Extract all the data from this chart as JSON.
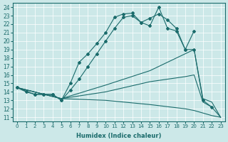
{
  "xlabel": "Humidex (Indice chaleur)",
  "ylabel": "",
  "bg_color": "#cce8e8",
  "line_color": "#1a6b6b",
  "xlim": [
    -0.5,
    23.5
  ],
  "ylim": [
    10.5,
    24.5
  ],
  "yticks": [
    11,
    12,
    13,
    14,
    15,
    16,
    17,
    18,
    19,
    20,
    21,
    22,
    23,
    24
  ],
  "xticks": [
    0,
    1,
    2,
    3,
    4,
    5,
    6,
    7,
    8,
    9,
    10,
    11,
    12,
    13,
    14,
    15,
    16,
    17,
    18,
    19,
    20,
    21,
    22,
    23
  ],
  "lines": [
    {
      "x": [
        0,
        1,
        2,
        3,
        4,
        5,
        6,
        7,
        8,
        9,
        10,
        11,
        12,
        13,
        14,
        15,
        16,
        17,
        18,
        19,
        20
      ],
      "y": [
        14.5,
        14.0,
        13.7,
        13.7,
        13.7,
        13.0,
        15.0,
        17.5,
        18.5,
        19.7,
        21.0,
        22.8,
        23.2,
        23.3,
        22.2,
        21.8,
        24.0,
        21.5,
        21.2,
        19.0,
        21.2
      ]
    },
    {
      "x": [
        0,
        2,
        3,
        4,
        5,
        6,
        7,
        8,
        9,
        10,
        11,
        12,
        13,
        14,
        15,
        16,
        17,
        18,
        19,
        20,
        21,
        22
      ],
      "y": [
        14.5,
        13.7,
        13.7,
        13.7,
        13.0,
        14.2,
        15.5,
        17.0,
        18.5,
        20.0,
        21.5,
        22.8,
        23.0,
        22.2,
        22.7,
        23.2,
        22.5,
        21.5,
        19.0,
        19.0,
        13.0,
        12.2
      ]
    },
    {
      "x": [
        0,
        5,
        10,
        15,
        17,
        18,
        19,
        20,
        21,
        22,
        23
      ],
      "y": [
        14.5,
        13.2,
        14.8,
        16.5,
        17.5,
        18.0,
        18.5,
        19.0,
        13.2,
        12.8,
        11.0
      ]
    },
    {
      "x": [
        0,
        5,
        10,
        15,
        19,
        20,
        21,
        22,
        23
      ],
      "y": [
        14.5,
        13.2,
        14.0,
        15.2,
        15.8,
        16.0,
        12.8,
        12.2,
        11.0
      ]
    },
    {
      "x": [
        0,
        5,
        10,
        15,
        19,
        20,
        21,
        22,
        23
      ],
      "y": [
        14.5,
        13.2,
        13.0,
        12.5,
        12.0,
        11.8,
        11.5,
        11.2,
        11.0
      ]
    }
  ]
}
